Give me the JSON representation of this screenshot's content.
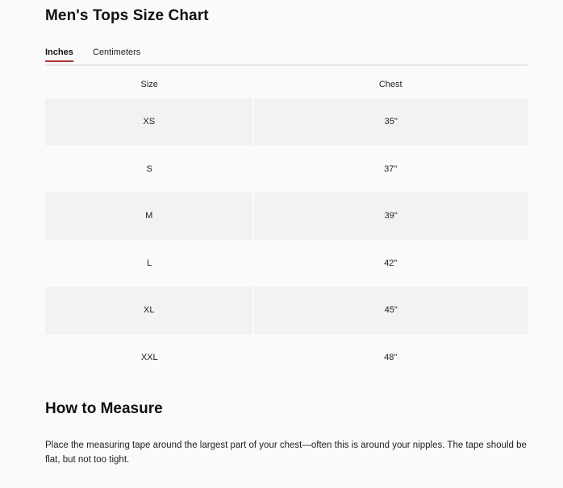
{
  "title": "Men's Tops Size Chart",
  "tabs": [
    {
      "label": "Inches",
      "active": true
    },
    {
      "label": "Centimeters",
      "active": false
    }
  ],
  "accent_color": "#b3303a",
  "table": {
    "headers": [
      "Size",
      "Chest"
    ],
    "rows": [
      [
        "XS",
        "35\""
      ],
      [
        "S",
        "37\""
      ],
      [
        "M",
        "39\""
      ],
      [
        "L",
        "42\""
      ],
      [
        "XL",
        "45\""
      ],
      [
        "XXL",
        "48\""
      ]
    ]
  },
  "measure": {
    "heading": "How to Measure",
    "text": "Place the measuring tape around the largest part of your chest—often this is around your nipples. The tape should be flat, but not too tight."
  }
}
